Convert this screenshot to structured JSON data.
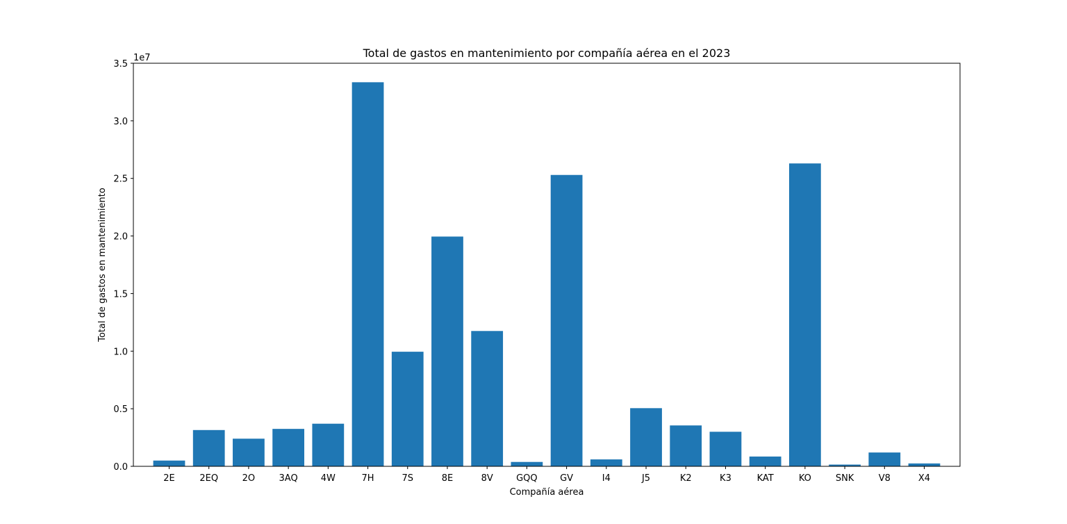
{
  "chart_data": {
    "type": "bar",
    "title": "Total de gastos en mantenimiento por compañía aérea en el 2023",
    "xlabel": "Compañía aérea",
    "ylabel": "Total de gastos en mantenimiento",
    "y_offset_label": "1e7",
    "y_tick_labels": [
      "0.0",
      "0.5",
      "1.0",
      "1.5",
      "2.0",
      "2.5",
      "3.0",
      "3.5"
    ],
    "ylim": [
      0,
      35000000
    ],
    "grid": false,
    "bar_color": "#1f77b4",
    "categories": [
      "2E",
      "2EQ",
      "2O",
      "3AQ",
      "4W",
      "7H",
      "7S",
      "8E",
      "8V",
      "GQQ",
      "GV",
      "I4",
      "J5",
      "K2",
      "K3",
      "KAT",
      "KO",
      "SNK",
      "V8",
      "X4"
    ],
    "values": [
      500000,
      3150000,
      2400000,
      3250000,
      3700000,
      33350000,
      9950000,
      19950000,
      11750000,
      380000,
      25300000,
      600000,
      5050000,
      3550000,
      3000000,
      850000,
      26300000,
      150000,
      1200000,
      250000
    ]
  }
}
